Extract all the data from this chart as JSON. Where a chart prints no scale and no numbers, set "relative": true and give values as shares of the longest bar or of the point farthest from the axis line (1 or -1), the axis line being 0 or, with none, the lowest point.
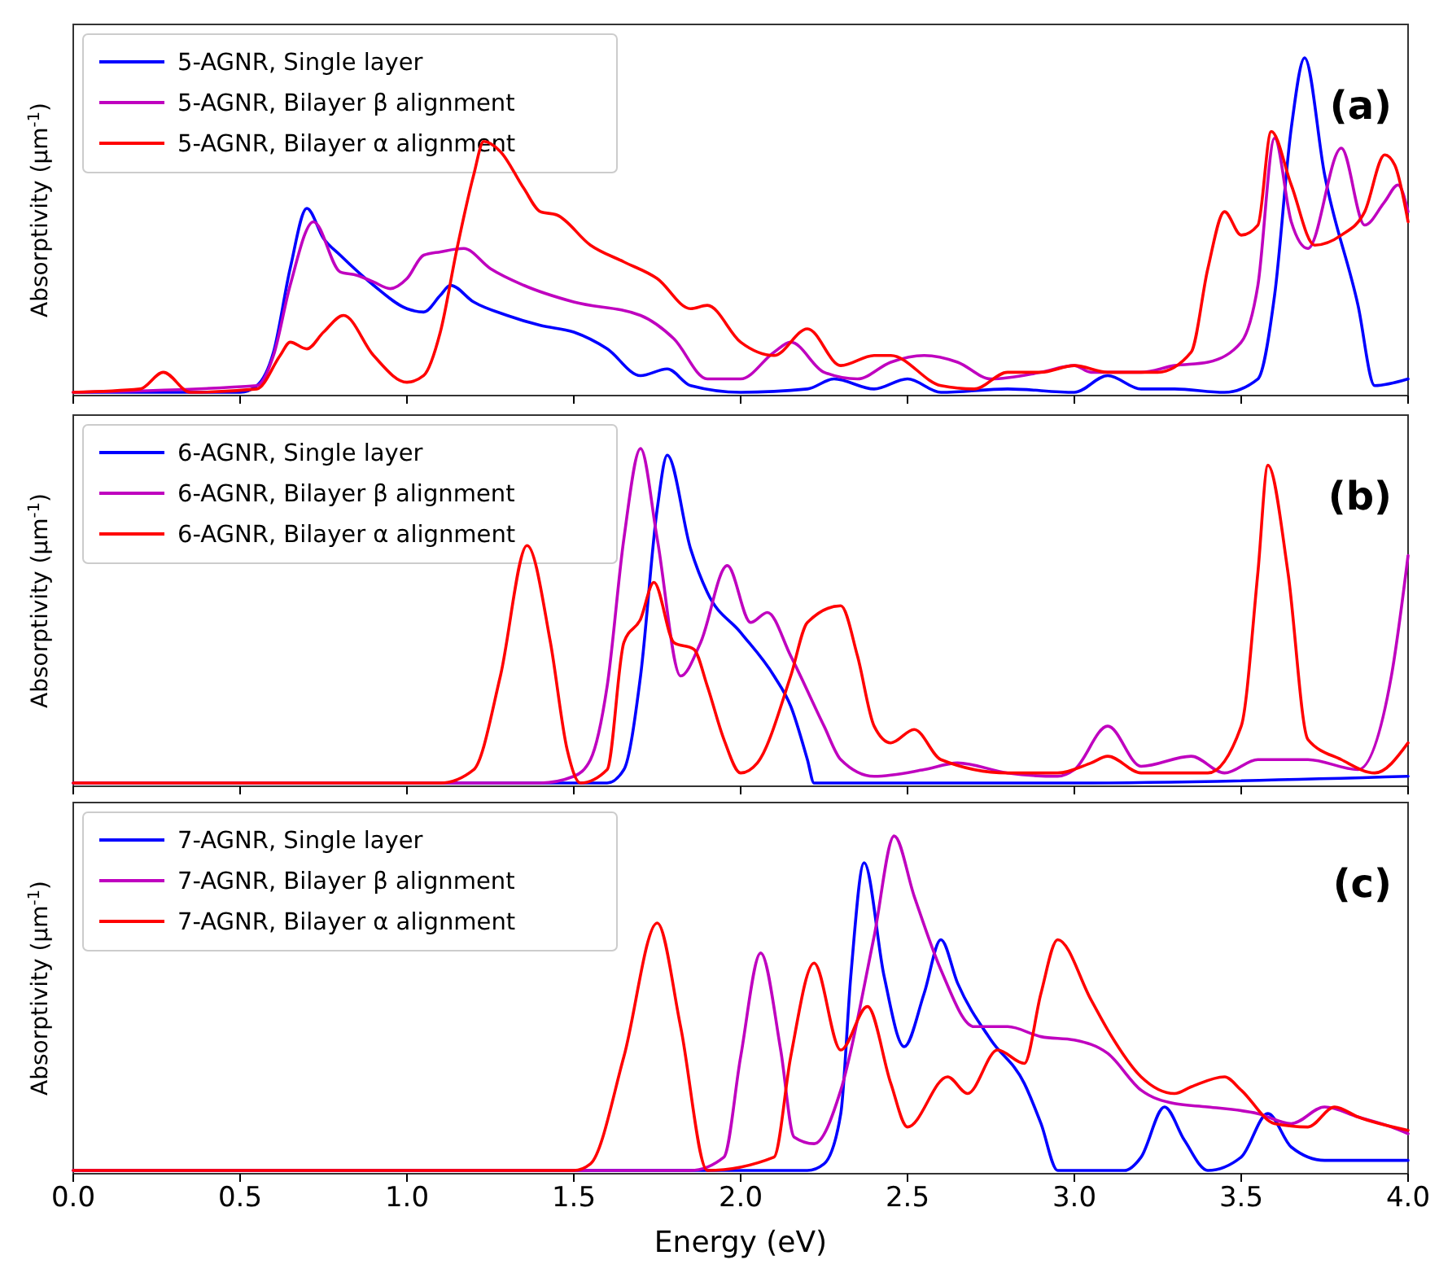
{
  "chart_data": [
    {
      "type": "line",
      "relative": true,
      "ylabel": "Absorptivity (μm$^{-1}$)",
      "annotations": [
        "(a)"
      ],
      "xlim": [
        0,
        4
      ],
      "xticks": [
        {
          "value": 0,
          "label": null
        },
        {
          "value": 0.5,
          "label": null
        },
        {
          "value": 1,
          "label": null
        },
        {
          "value": 1.5,
          "label": null
        },
        {
          "value": 2,
          "label": null
        },
        {
          "value": 2.5,
          "label": null
        },
        {
          "value": 3,
          "label": null
        },
        {
          "value": 3.5,
          "label": null
        },
        {
          "value": 4,
          "label": null
        }
      ],
      "tick_labels": false,
      "legend": "top left",
      "line_style": "solid",
      "marker": "none",
      "grid": false,
      "series": [
        {
          "name": "5-AGNR, Single layer",
          "color": "#0000ff",
          "x": [
            0,
            0.5,
            0.55,
            0.6,
            0.65,
            0.7,
            0.75,
            0.8,
            0.9,
            1.0,
            1.05,
            1.1,
            1.13,
            1.2,
            1.3,
            1.4,
            1.5,
            1.6,
            1.7,
            1.78,
            1.85,
            2.0,
            2.2,
            2.28,
            2.4,
            2.5,
            2.6,
            2.8,
            3.0,
            3.1,
            3.2,
            3.3,
            3.45,
            3.55,
            3.6,
            3.65,
            3.69,
            3.75,
            3.85,
            3.9,
            4.0
          ],
          "values": [
            0,
            0,
            0.02,
            0.12,
            0.37,
            0.55,
            0.46,
            0.41,
            0.32,
            0.25,
            0.24,
            0.29,
            0.32,
            0.27,
            0.23,
            0.2,
            0.18,
            0.13,
            0.05,
            0.07,
            0.02,
            0,
            0.01,
            0.04,
            0.01,
            0.04,
            0,
            0.01,
            0,
            0.05,
            0.01,
            0.01,
            0,
            0.04,
            0.29,
            0.79,
            1,
            0.65,
            0.26,
            0.02,
            0.04
          ]
        },
        {
          "name": "5-AGNR, Bilayer β alignment",
          "color": "#bf00bf",
          "x": [
            0,
            0.55,
            0.6,
            0.65,
            0.72,
            0.8,
            0.85,
            0.9,
            0.95,
            1.0,
            1.05,
            1.1,
            1.17,
            1.25,
            1.35,
            1.5,
            1.7,
            1.8,
            1.9,
            2.0,
            2.1,
            2.15,
            2.25,
            2.35,
            2.45,
            2.55,
            2.65,
            2.75,
            2.9,
            3.0,
            3.05,
            3.2,
            3.3,
            3.4,
            3.5,
            3.55,
            3.6,
            3.65,
            3.7,
            3.8,
            3.87,
            3.93,
            3.97,
            4.0
          ],
          "values": [
            0,
            0.02,
            0.11,
            0.32,
            0.51,
            0.36,
            0.35,
            0.33,
            0.31,
            0.34,
            0.41,
            0.42,
            0.43,
            0.37,
            0.32,
            0.27,
            0.23,
            0.16,
            0.04,
            0.04,
            0.12,
            0.15,
            0.06,
            0.04,
            0.09,
            0.11,
            0.09,
            0.04,
            0.06,
            0.08,
            0.06,
            0.06,
            0.08,
            0.09,
            0.15,
            0.32,
            0.76,
            0.51,
            0.43,
            0.73,
            0.5,
            0.57,
            0.62,
            0.54
          ]
        },
        {
          "name": "5-AGNR, Bilayer α alignment",
          "color": "#ff0000",
          "x": [
            0,
            0.2,
            0.27,
            0.35,
            0.55,
            0.62,
            0.65,
            0.7,
            0.75,
            0.81,
            0.9,
            1.0,
            1.05,
            1.1,
            1.15,
            1.2,
            1.23,
            1.28,
            1.35,
            1.4,
            1.45,
            1.55,
            1.65,
            1.75,
            1.85,
            1.9,
            2.0,
            2.1,
            2.2,
            2.3,
            2.4,
            2.45,
            2.6,
            2.7,
            2.8,
            2.9,
            3.0,
            3.1,
            3.2,
            3.25,
            3.35,
            3.4,
            3.45,
            3.5,
            3.55,
            3.59,
            3.65,
            3.72,
            3.8,
            3.87,
            3.93,
            3.96,
            4.0
          ],
          "values": [
            0,
            0.01,
            0.06,
            0,
            0.01,
            0.11,
            0.15,
            0.13,
            0.18,
            0.23,
            0.11,
            0.03,
            0.05,
            0.18,
            0.43,
            0.65,
            0.75,
            0.72,
            0.61,
            0.54,
            0.53,
            0.44,
            0.39,
            0.34,
            0.25,
            0.26,
            0.15,
            0.11,
            0.19,
            0.08,
            0.11,
            0.11,
            0.02,
            0.01,
            0.06,
            0.06,
            0.08,
            0.06,
            0.06,
            0.06,
            0.12,
            0.37,
            0.54,
            0.47,
            0.5,
            0.78,
            0.62,
            0.44,
            0.47,
            0.54,
            0.71,
            0.68,
            0.51
          ]
        }
      ]
    },
    {
      "type": "line",
      "relative": true,
      "ylabel": "Absorptivity (μm$^{-1}$)",
      "annotations": [
        "(b)"
      ],
      "xlim": [
        0,
        4
      ],
      "xticks": [
        {
          "value": 0,
          "label": null
        },
        {
          "value": 0.5,
          "label": null
        },
        {
          "value": 1,
          "label": null
        },
        {
          "value": 1.5,
          "label": null
        },
        {
          "value": 2,
          "label": null
        },
        {
          "value": 2.5,
          "label": null
        },
        {
          "value": 3,
          "label": null
        },
        {
          "value": 3.5,
          "label": null
        },
        {
          "value": 4,
          "label": null
        }
      ],
      "tick_labels": false,
      "legend": "top left",
      "line_style": "solid",
      "marker": "none",
      "grid": false,
      "series": [
        {
          "name": "6-AGNR, Single layer",
          "color": "#0000ff",
          "x": [
            0,
            1.6,
            1.65,
            1.7,
            1.75,
            1.78,
            1.85,
            1.9,
            2.0,
            2.1,
            2.15,
            2.2,
            2.22,
            3.0,
            4.0
          ],
          "values": [
            0,
            0,
            0.04,
            0.32,
            0.82,
            0.98,
            0.7,
            0.57,
            0.45,
            0.32,
            0.23,
            0.07,
            0,
            0,
            0.02
          ]
        },
        {
          "name": "6-AGNR, Bilayer β alignment",
          "color": "#bf00bf",
          "x": [
            0,
            1.4,
            1.5,
            1.55,
            1.6,
            1.65,
            1.7,
            1.75,
            1.82,
            1.88,
            1.96,
            2.03,
            2.08,
            2.15,
            2.25,
            2.3,
            2.4,
            2.55,
            2.65,
            2.8,
            2.95,
            3.0,
            3.1,
            3.2,
            3.35,
            3.45,
            3.55,
            3.7,
            3.85,
            3.95,
            4.0
          ],
          "values": [
            0,
            0,
            0.02,
            0.07,
            0.29,
            0.73,
            1,
            0.73,
            0.32,
            0.42,
            0.65,
            0.48,
            0.51,
            0.38,
            0.17,
            0.07,
            0.02,
            0.04,
            0.06,
            0.03,
            0.02,
            0.04,
            0.17,
            0.05,
            0.08,
            0.03,
            0.07,
            0.07,
            0.04,
            0.32,
            0.68
          ]
        },
        {
          "name": "6-AGNR, Bilayer α alignment",
          "color": "#ff0000",
          "x": [
            0,
            1.1,
            1.2,
            1.28,
            1.36,
            1.43,
            1.48,
            1.52,
            1.6,
            1.65,
            1.7,
            1.74,
            1.8,
            1.86,
            1.9,
            1.95,
            2.0,
            2.05,
            2.15,
            2.2,
            2.3,
            2.35,
            2.4,
            2.45,
            2.52,
            2.6,
            2.8,
            2.95,
            3.05,
            3.1,
            3.2,
            3.4,
            3.5,
            3.55,
            3.58,
            3.64,
            3.7,
            3.8,
            3.9,
            4.0
          ],
          "values": [
            0,
            0,
            0.04,
            0.32,
            0.71,
            0.42,
            0.1,
            0,
            0.04,
            0.42,
            0.49,
            0.6,
            0.42,
            0.4,
            0.29,
            0.13,
            0.03,
            0.06,
            0.32,
            0.48,
            0.53,
            0.38,
            0.17,
            0.12,
            0.16,
            0.07,
            0.03,
            0.03,
            0.06,
            0.08,
            0.03,
            0.03,
            0.17,
            0.63,
            0.95,
            0.63,
            0.13,
            0.07,
            0.03,
            0.12
          ]
        }
      ]
    },
    {
      "type": "line",
      "relative": true,
      "ylabel": "Absorptivity (μm$^{-1}$)",
      "xlabel": "Energy (eV)",
      "annotations": [
        "(c)"
      ],
      "xlim": [
        0,
        4
      ],
      "xticks": [
        {
          "value": 0,
          "label": "0.0"
        },
        {
          "value": 0.5,
          "label": "0.5"
        },
        {
          "value": 1,
          "label": "1.0"
        },
        {
          "value": 1.5,
          "label": "1.5"
        },
        {
          "value": 2,
          "label": "2.0"
        },
        {
          "value": 2.5,
          "label": "2.5"
        },
        {
          "value": 3,
          "label": "3.0"
        },
        {
          "value": 3.5,
          "label": "3.5"
        },
        {
          "value": 4,
          "label": "4.0"
        }
      ],
      "legend": "top left",
      "line_style": "solid",
      "marker": "none",
      "grid": false,
      "series": [
        {
          "name": "7-AGNR, Single layer",
          "color": "#0000ff",
          "x": [
            0,
            2.2,
            2.25,
            2.3,
            2.33,
            2.37,
            2.43,
            2.49,
            2.55,
            2.6,
            2.65,
            2.75,
            2.85,
            2.9,
            2.95,
            3.15,
            3.2,
            3.27,
            3.33,
            3.4,
            3.5,
            3.58,
            3.65,
            3.75,
            4.0
          ],
          "values": [
            0,
            0,
            0.02,
            0.17,
            0.58,
            0.92,
            0.58,
            0.37,
            0.53,
            0.69,
            0.56,
            0.39,
            0.26,
            0.14,
            0,
            0,
            0.04,
            0.19,
            0.09,
            0,
            0.04,
            0.17,
            0.07,
            0.03,
            0.03
          ]
        },
        {
          "name": "7-AGNR, Bilayer β alignment",
          "color": "#bf00bf",
          "x": [
            0,
            1.85,
            1.95,
            2.0,
            2.06,
            2.12,
            2.16,
            2.22,
            2.3,
            2.4,
            2.46,
            2.52,
            2.6,
            2.7,
            2.8,
            2.9,
            3.0,
            3.1,
            3.2,
            3.3,
            3.4,
            3.55,
            3.65,
            3.75,
            3.85,
            3.95,
            4.0
          ],
          "values": [
            0,
            0,
            0.04,
            0.34,
            0.65,
            0.36,
            0.1,
            0.08,
            0.24,
            0.7,
            1,
            0.82,
            0.6,
            0.43,
            0.43,
            0.4,
            0.39,
            0.35,
            0.24,
            0.2,
            0.19,
            0.17,
            0.14,
            0.19,
            0.16,
            0.13,
            0.11
          ]
        },
        {
          "name": "7-AGNR, Bilayer α alignment",
          "color": "#ff0000",
          "x": [
            0,
            1.5,
            1.55,
            1.65,
            1.75,
            1.82,
            1.9,
            2.1,
            2.15,
            2.22,
            2.3,
            2.38,
            2.45,
            2.5,
            2.62,
            2.68,
            2.77,
            2.85,
            2.9,
            2.95,
            3.05,
            3.1,
            3.2,
            3.3,
            3.35,
            3.45,
            3.5,
            3.6,
            3.7,
            3.78,
            3.85,
            4.0
          ],
          "values": [
            0,
            0,
            0.02,
            0.34,
            0.74,
            0.43,
            0,
            0.04,
            0.34,
            0.62,
            0.36,
            0.49,
            0.26,
            0.13,
            0.28,
            0.23,
            0.36,
            0.32,
            0.53,
            0.69,
            0.51,
            0.42,
            0.28,
            0.23,
            0.25,
            0.28,
            0.24,
            0.14,
            0.13,
            0.19,
            0.16,
            0.12
          ]
        }
      ]
    }
  ]
}
